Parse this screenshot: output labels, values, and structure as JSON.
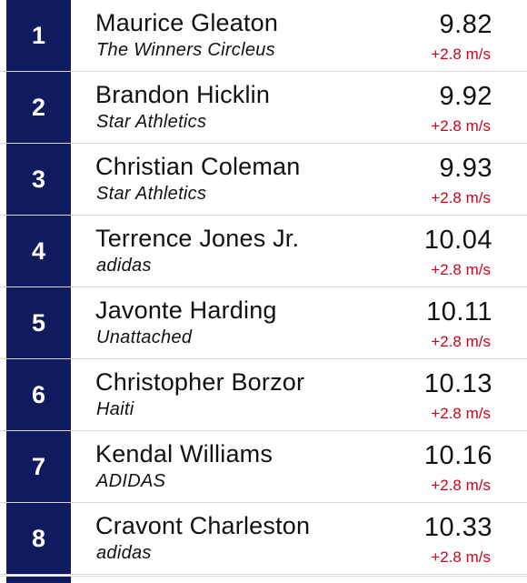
{
  "results": [
    {
      "place": "1",
      "athlete": "Maurice Gleaton",
      "team": "The Winners Circleus",
      "time": "9.82",
      "wind": "+2.8 m/s"
    },
    {
      "place": "2",
      "athlete": "Brandon Hicklin",
      "team": "Star Athletics",
      "time": "9.92",
      "wind": "+2.8 m/s"
    },
    {
      "place": "3",
      "athlete": "Christian Coleman",
      "team": "Star Athletics",
      "time": "9.93",
      "wind": "+2.8 m/s"
    },
    {
      "place": "4",
      "athlete": "Terrence Jones Jr.",
      "team": "adidas",
      "time": "10.04",
      "wind": "+2.8 m/s"
    },
    {
      "place": "5",
      "athlete": "Javonte Harding",
      "team": "Unattached",
      "time": "10.11",
      "wind": "+2.8 m/s"
    },
    {
      "place": "6",
      "athlete": "Christopher Borzor",
      "team": "Haiti",
      "time": "10.13",
      "wind": "+2.8 m/s"
    },
    {
      "place": "7",
      "athlete": "Kendal Williams",
      "team": "ADIDAS",
      "time": "10.16",
      "wind": "+2.8 m/s"
    },
    {
      "place": "8",
      "athlete": "Cravont Charleston",
      "team": "adidas",
      "time": "10.33",
      "wind": "+2.8 m/s"
    }
  ],
  "colors": {
    "place_bg": "#101a5e",
    "wind_text": "#d0021b",
    "divider": "#d8d8d8"
  }
}
